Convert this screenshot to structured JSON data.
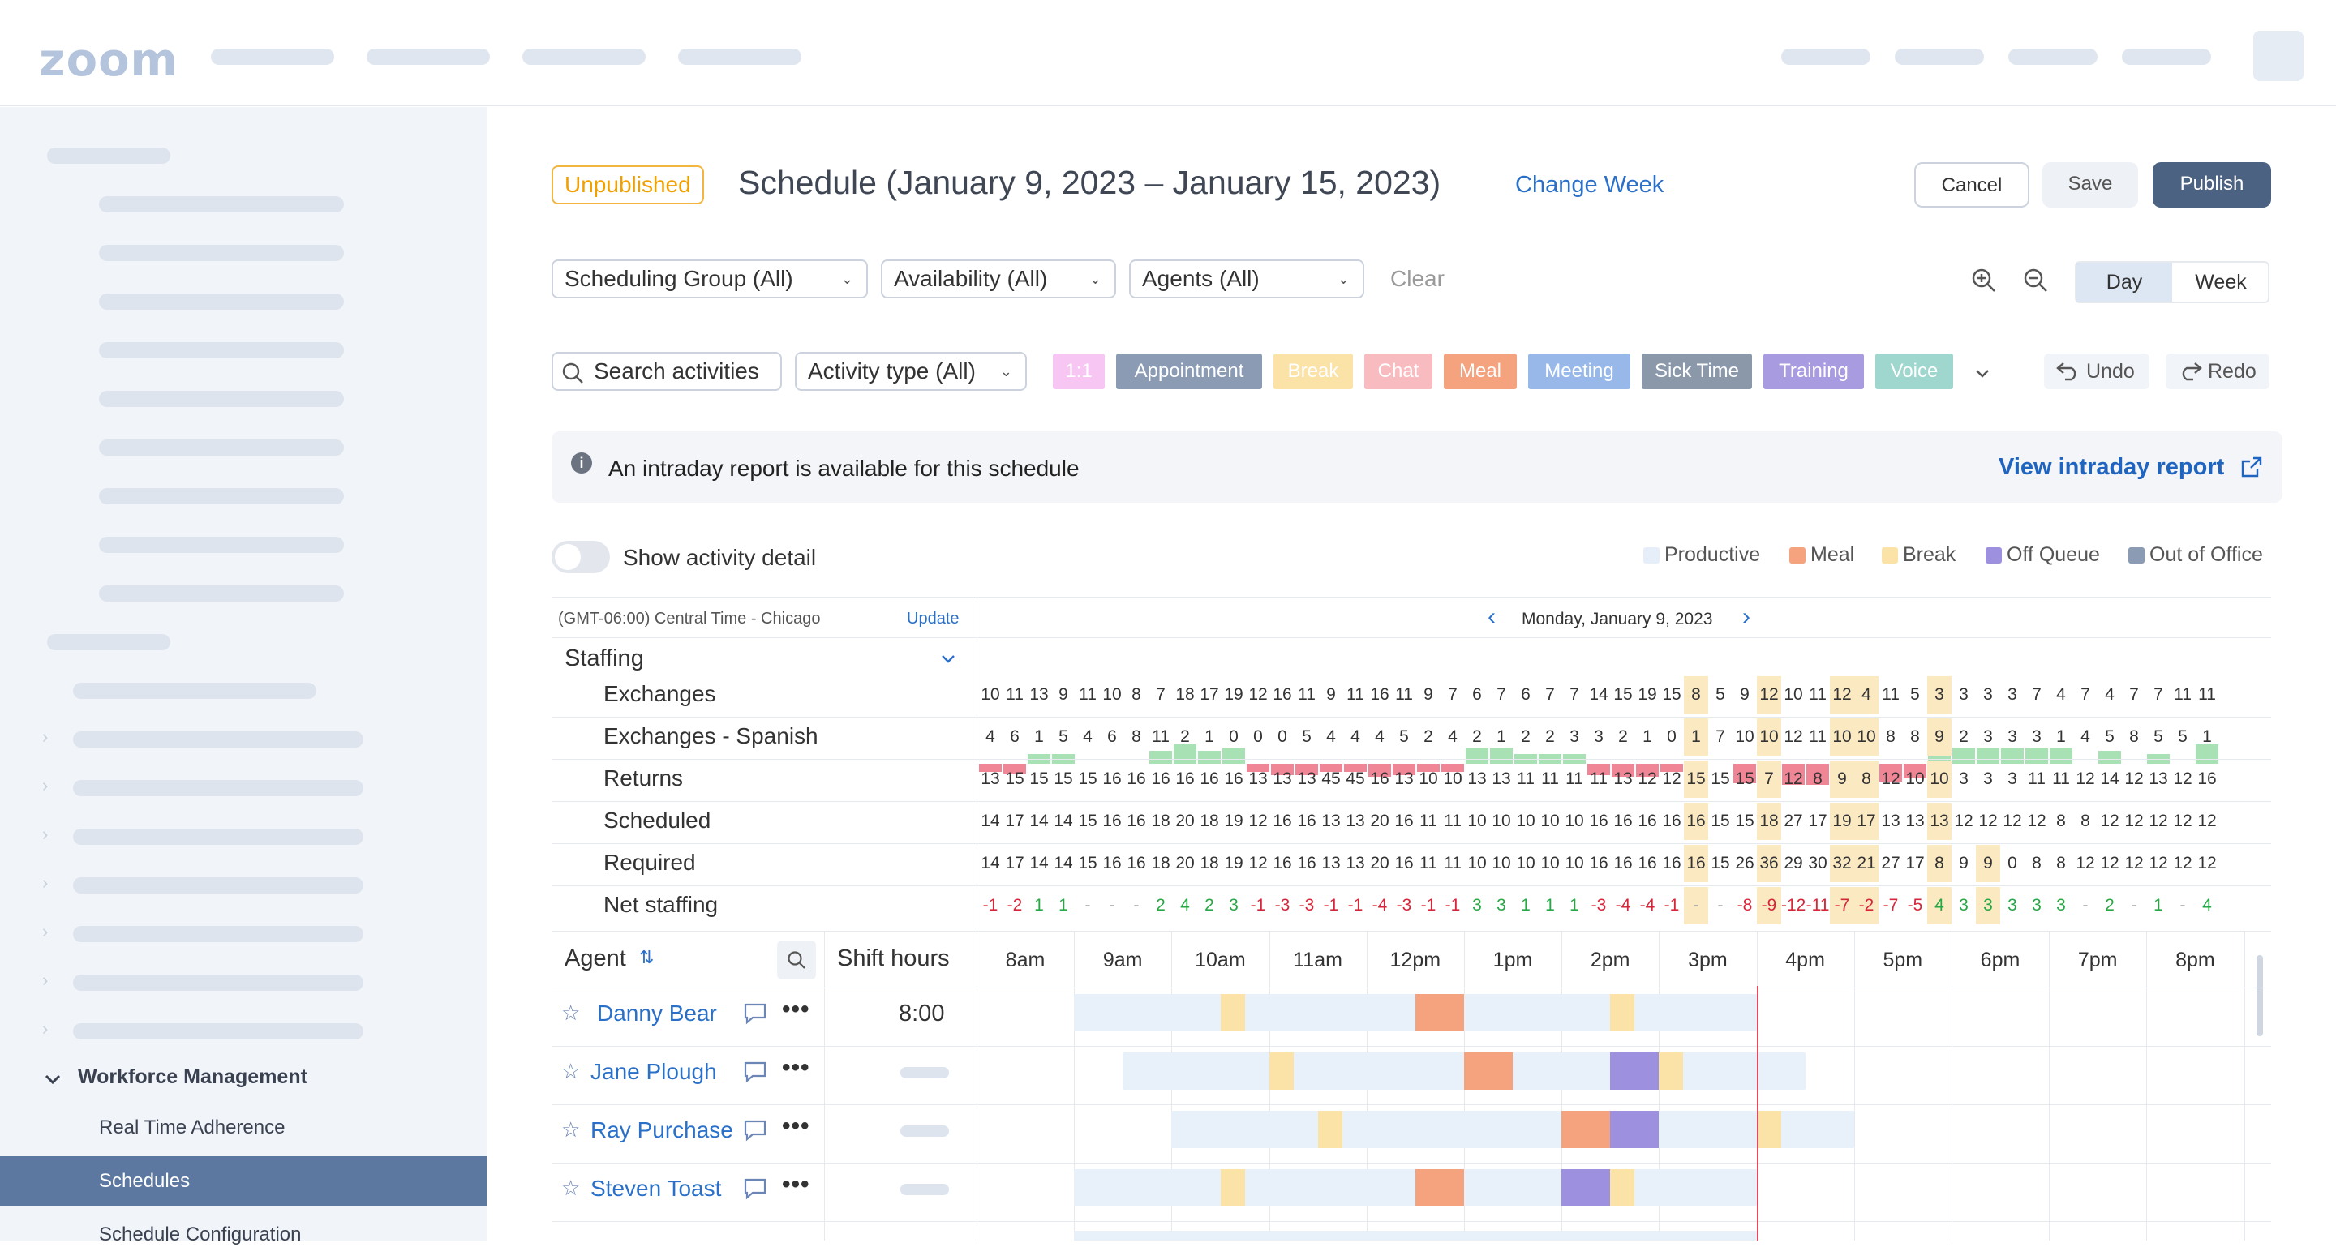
{
  "brand": {
    "logo": "zoom"
  },
  "sidebar": {
    "section_label": "Workforce Management",
    "items": [
      {
        "label": "Real Time Adherence"
      },
      {
        "label": "Schedules"
      },
      {
        "label": "Schedule Configuration"
      }
    ]
  },
  "header": {
    "status_badge": "Unpublished",
    "title": "Schedule (January 9, 2023 – January 15, 2023)",
    "change_week": "Change Week",
    "cancel": "Cancel",
    "save": "Save",
    "publish": "Publish"
  },
  "filters": {
    "scheduling_group": "Scheduling Group (All)",
    "availability": "Availability (All)",
    "agents": "Agents (All)",
    "clear": "Clear",
    "view_day": "Day",
    "view_week": "Week"
  },
  "activity_bar": {
    "search_placeholder": "Search activities",
    "activity_type": "Activity type (All)",
    "chips": [
      {
        "label": "1:1",
        "color": "#f7c6f2"
      },
      {
        "label": "Appointment",
        "color": "#8a9bb3"
      },
      {
        "label": "Break",
        "color": "#fbe3a8"
      },
      {
        "label": "Chat",
        "color": "#f8bcc0"
      },
      {
        "label": "Meal",
        "color": "#f5a27e"
      },
      {
        "label": "Meeting",
        "color": "#98b8ea"
      },
      {
        "label": "Sick Time",
        "color": "#8a98aa"
      },
      {
        "label": "Training",
        "color": "#a99bdf"
      },
      {
        "label": "Voice",
        "color": "#9fd6cd"
      }
    ],
    "undo": "Undo",
    "redo": "Redo"
  },
  "banner": {
    "message": "An intraday report is available for this schedule",
    "link": "View intraday report"
  },
  "activity_detail": {
    "toggle_label": "Show activity detail",
    "enabled": false
  },
  "legend": [
    {
      "label": "Productive",
      "color": "#e6eef9"
    },
    {
      "label": "Meal",
      "color": "#f5a27e"
    },
    {
      "label": "Break",
      "color": "#fbe3a8"
    },
    {
      "label": "Off Queue",
      "color": "#9d91df"
    },
    {
      "label": "Out of Office",
      "color": "#8a9bb3"
    }
  ],
  "grid": {
    "timezone": "(GMT-06:00) Central Time - Chicago",
    "update": "Update",
    "date": "Monday, January 9, 2023",
    "staffing_label": "Staffing",
    "rows": [
      {
        "label": "Exchanges",
        "values": [
          "10",
          "11",
          "13",
          "9",
          "11",
          "10",
          "8",
          "7",
          "18",
          "17",
          "19",
          "12",
          "16",
          "11",
          "9",
          "11",
          "16",
          "11",
          "9",
          "7",
          "6",
          "7",
          "6",
          "7",
          "7",
          "14",
          "15",
          "19",
          "15",
          "8",
          "5",
          "9",
          "12",
          "10",
          "11",
          "12",
          "4",
          "11",
          "5",
          "3",
          "3",
          "3",
          "3",
          "7",
          "4",
          "7",
          "4",
          "7",
          "7",
          "11",
          "11"
        ]
      },
      {
        "label": "Exchanges - Spanish",
        "values": [
          "4",
          "6",
          "1",
          "5",
          "4",
          "6",
          "8",
          "11",
          "2",
          "1",
          "0",
          "0",
          "0",
          "5",
          "4",
          "4",
          "4",
          "5",
          "2",
          "4",
          "2",
          "1",
          "2",
          "2",
          "3",
          "3",
          "2",
          "1",
          "0",
          "1",
          "7",
          "10",
          "10",
          "12",
          "11",
          "10",
          "10",
          "8",
          "8",
          "9",
          "2",
          "3",
          "3",
          "3",
          "1",
          "4",
          "5",
          "8",
          "5",
          "5",
          "1"
        ]
      },
      {
        "label": "Returns",
        "values": [
          "13",
          "15",
          "15",
          "15",
          "15",
          "16",
          "16",
          "16",
          "16",
          "16",
          "16",
          "13",
          "13",
          "13",
          "45",
          "45",
          "16",
          "13",
          "10",
          "10",
          "13",
          "13",
          "11",
          "11",
          "11",
          "11",
          "13",
          "12",
          "12",
          "15",
          "15",
          "15",
          "7",
          "12",
          "8",
          "9",
          "8",
          "12",
          "10",
          "10",
          "3",
          "3",
          "3",
          "11",
          "11",
          "12",
          "14",
          "12",
          "13",
          "12",
          "16"
        ]
      },
      {
        "label": "Scheduled",
        "values": [
          "14",
          "17",
          "14",
          "14",
          "15",
          "16",
          "16",
          "18",
          "20",
          "18",
          "19",
          "12",
          "16",
          "16",
          "13",
          "13",
          "20",
          "16",
          "11",
          "11",
          "10",
          "10",
          "10",
          "10",
          "10",
          "16",
          "16",
          "16",
          "16",
          "16",
          "15",
          "15",
          "18",
          "27",
          "17",
          "19",
          "17",
          "13",
          "13",
          "13",
          "12",
          "12",
          "12",
          "12",
          "8",
          "8",
          "12",
          "12",
          "12",
          "12",
          "12"
        ]
      },
      {
        "label": "Required",
        "values": [
          "14",
          "17",
          "14",
          "14",
          "15",
          "16",
          "16",
          "18",
          "20",
          "18",
          "19",
          "12",
          "16",
          "16",
          "13",
          "13",
          "20",
          "16",
          "11",
          "11",
          "10",
          "10",
          "10",
          "10",
          "10",
          "16",
          "16",
          "16",
          "16",
          "16",
          "15",
          "26",
          "36",
          "29",
          "30",
          "32",
          "21",
          "27",
          "17",
          "8",
          "9",
          "9",
          "0",
          "8",
          "8",
          "12",
          "12",
          "12",
          "12",
          "12",
          "12"
        ]
      },
      {
        "label": "Net staffing",
        "values": [
          "-1",
          "-2",
          "1",
          "1",
          "-",
          "-",
          "-",
          "2",
          "4",
          "2",
          "3",
          "-1",
          "-3",
          "-3",
          "-1",
          "-1",
          "-4",
          "-3",
          "-1",
          "-1",
          "3",
          "3",
          "1",
          "1",
          "1",
          "-3",
          "-4",
          "-4",
          "-1",
          "-",
          "-",
          "-8",
          "-9",
          "-12",
          "-11",
          "-7",
          "-2",
          "-7",
          "-5",
          "4",
          "3",
          "3",
          "3",
          "3",
          "3",
          "-",
          "2",
          "-",
          "1",
          "-",
          "4"
        ]
      }
    ],
    "hours": [
      "8am",
      "9am",
      "10am",
      "11am",
      "12pm",
      "1pm",
      "2pm",
      "3pm",
      "4pm",
      "5pm",
      "6pm",
      "7pm",
      "8pm"
    ],
    "agent_col": "Agent",
    "shift_col": "Shift hours",
    "agents": [
      {
        "name": "Danny Bear",
        "shift": "8:00",
        "start": 9,
        "end": 16,
        "breaks": [
          10.5,
          14.5
        ],
        "meals": [
          12.5
        ],
        "offq": []
      },
      {
        "name": "Jane Plough",
        "shift": "",
        "start": 9.5,
        "end": 16.5,
        "breaks": [
          11,
          15
        ],
        "meals": [
          13
        ],
        "offq": [
          14.5
        ]
      },
      {
        "name": "Ray Purchase",
        "shift": "",
        "start": 10,
        "end": 17,
        "breaks": [
          11.5,
          16
        ],
        "meals": [
          14
        ],
        "offq": [
          14.5
        ]
      },
      {
        "name": "Steven Toast",
        "shift": "",
        "start": 9,
        "end": 16,
        "breaks": [
          10.5,
          14.5
        ],
        "meals": [
          12.5
        ],
        "offq": [
          14
        ]
      }
    ]
  }
}
